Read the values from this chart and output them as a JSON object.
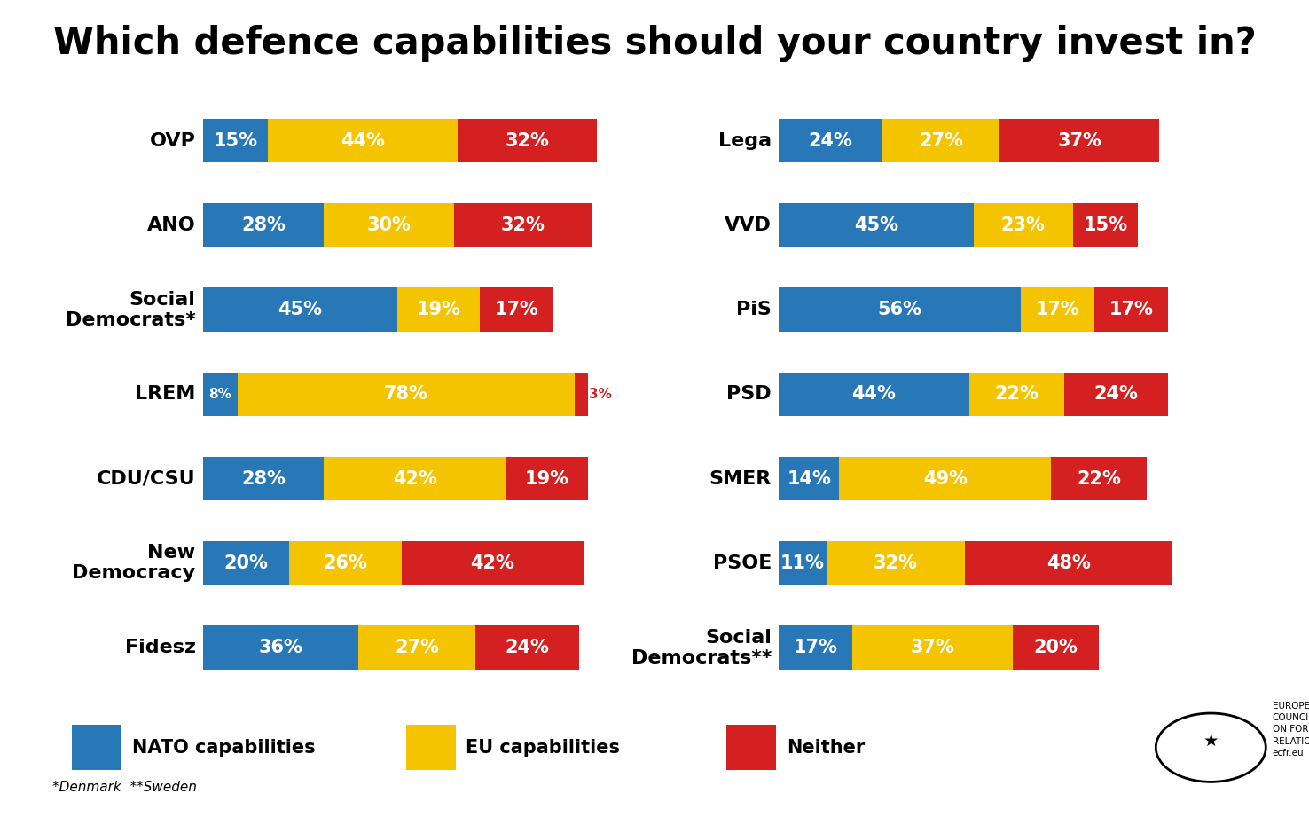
{
  "title": "Which defence capabilities should your country invest in?",
  "title_fontsize": 30,
  "background_color": "#ffffff",
  "colors": {
    "nato": "#2878b8",
    "eu": "#f5c400",
    "neither": "#d42020"
  },
  "left_parties": [
    {
      "name": "OVP",
      "nato": 15,
      "eu": 44,
      "neither": 32
    },
    {
      "name": "ANO",
      "nato": 28,
      "eu": 30,
      "neither": 32
    },
    {
      "name": "Social\nDemocrats*",
      "nato": 45,
      "eu": 19,
      "neither": 17
    },
    {
      "name": "LREM",
      "nato": 8,
      "eu": 78,
      "neither": 3
    },
    {
      "name": "CDU/CSU",
      "nato": 28,
      "eu": 42,
      "neither": 19
    },
    {
      "name": "New\nDemocracy",
      "nato": 20,
      "eu": 26,
      "neither": 42
    },
    {
      "name": "Fidesz",
      "nato": 36,
      "eu": 27,
      "neither": 24
    }
  ],
  "right_parties": [
    {
      "name": "Lega",
      "nato": 24,
      "eu": 27,
      "neither": 37
    },
    {
      "name": "VVD",
      "nato": 45,
      "eu": 23,
      "neither": 15
    },
    {
      "name": "PiS",
      "nato": 56,
      "eu": 17,
      "neither": 17
    },
    {
      "name": "PSD",
      "nato": 44,
      "eu": 22,
      "neither": 24
    },
    {
      "name": "SMER",
      "nato": 14,
      "eu": 49,
      "neither": 22
    },
    {
      "name": "PSOE",
      "nato": 11,
      "eu": 32,
      "neither": 48
    },
    {
      "name": "Social\nDemocrats**",
      "nato": 17,
      "eu": 37,
      "neither": 20
    }
  ],
  "legend_labels": [
    "NATO capabilities",
    "EU capabilities",
    "Neither"
  ],
  "footnote": "*Denmark  **Sweden",
  "bar_height": 0.52,
  "bar_fontsize": 15,
  "label_fontsize": 16,
  "max_bar_width": 89
}
